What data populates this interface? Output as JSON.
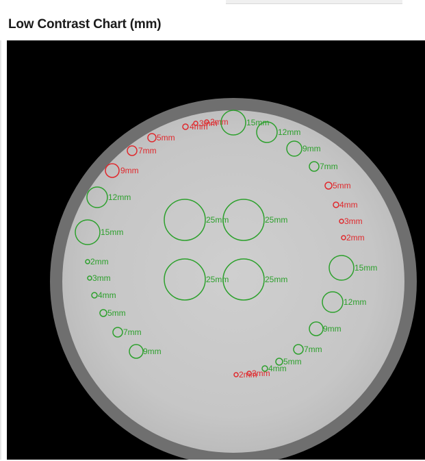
{
  "panel": {
    "title": "Low Contrast Chart (mm)"
  },
  "colors": {
    "inset": "#2ca02c",
    "not_detected": "#e0282c",
    "phantom": "#c9c9c9",
    "ring": "#777777",
    "background": "#000000"
  },
  "markers": {
    "top_arc": [
      {
        "label": "2mm",
        "status": "not_detected"
      },
      {
        "label": "3mm",
        "status": "not_detected"
      },
      {
        "label": "4mm",
        "status": "not_detected"
      },
      {
        "label": "5mm",
        "status": "not_detected"
      },
      {
        "label": "7mm",
        "status": "not_detected"
      },
      {
        "label": "9mm",
        "status": "not_detected"
      },
      {
        "label": "12mm",
        "status": "inset"
      },
      {
        "label": "15mm",
        "status": "inset"
      }
    ],
    "right_arc": [
      {
        "label": "15mm",
        "status": "inset"
      },
      {
        "label": "12mm",
        "status": "inset"
      },
      {
        "label": "9mm",
        "status": "inset"
      },
      {
        "label": "7mm",
        "status": "inset"
      },
      {
        "label": "5mm",
        "status": "not_detected"
      },
      {
        "label": "4mm",
        "status": "not_detected"
      },
      {
        "label": "3mm",
        "status": "not_detected"
      },
      {
        "label": "2mm",
        "status": "not_detected"
      }
    ],
    "left_arc": [
      {
        "label": "2mm",
        "status": "inset"
      },
      {
        "label": "3mm",
        "status": "inset"
      },
      {
        "label": "4mm",
        "status": "inset"
      },
      {
        "label": "5mm",
        "status": "inset"
      },
      {
        "label": "7mm",
        "status": "inset"
      },
      {
        "label": "9mm",
        "status": "inset"
      },
      {
        "label": "12mm",
        "status": "inset"
      },
      {
        "label": "15mm",
        "status": "inset"
      }
    ],
    "right_lower_arc": [
      {
        "label": "15mm",
        "status": "inset"
      },
      {
        "label": "12mm",
        "status": "inset"
      },
      {
        "label": "9mm",
        "status": "inset"
      },
      {
        "label": "7mm",
        "status": "inset"
      },
      {
        "label": "5mm",
        "status": "inset"
      },
      {
        "label": "4mm",
        "status": "inset"
      },
      {
        "label": "3mm",
        "status": "not_detected"
      },
      {
        "label": "2mm",
        "status": "not_detected"
      }
    ],
    "center": [
      {
        "label": "25mm",
        "status": "inset"
      },
      {
        "label": "25mm",
        "status": "inset"
      },
      {
        "label": "25mm",
        "status": "inset"
      },
      {
        "label": "25mm",
        "status": "inset"
      }
    ]
  }
}
